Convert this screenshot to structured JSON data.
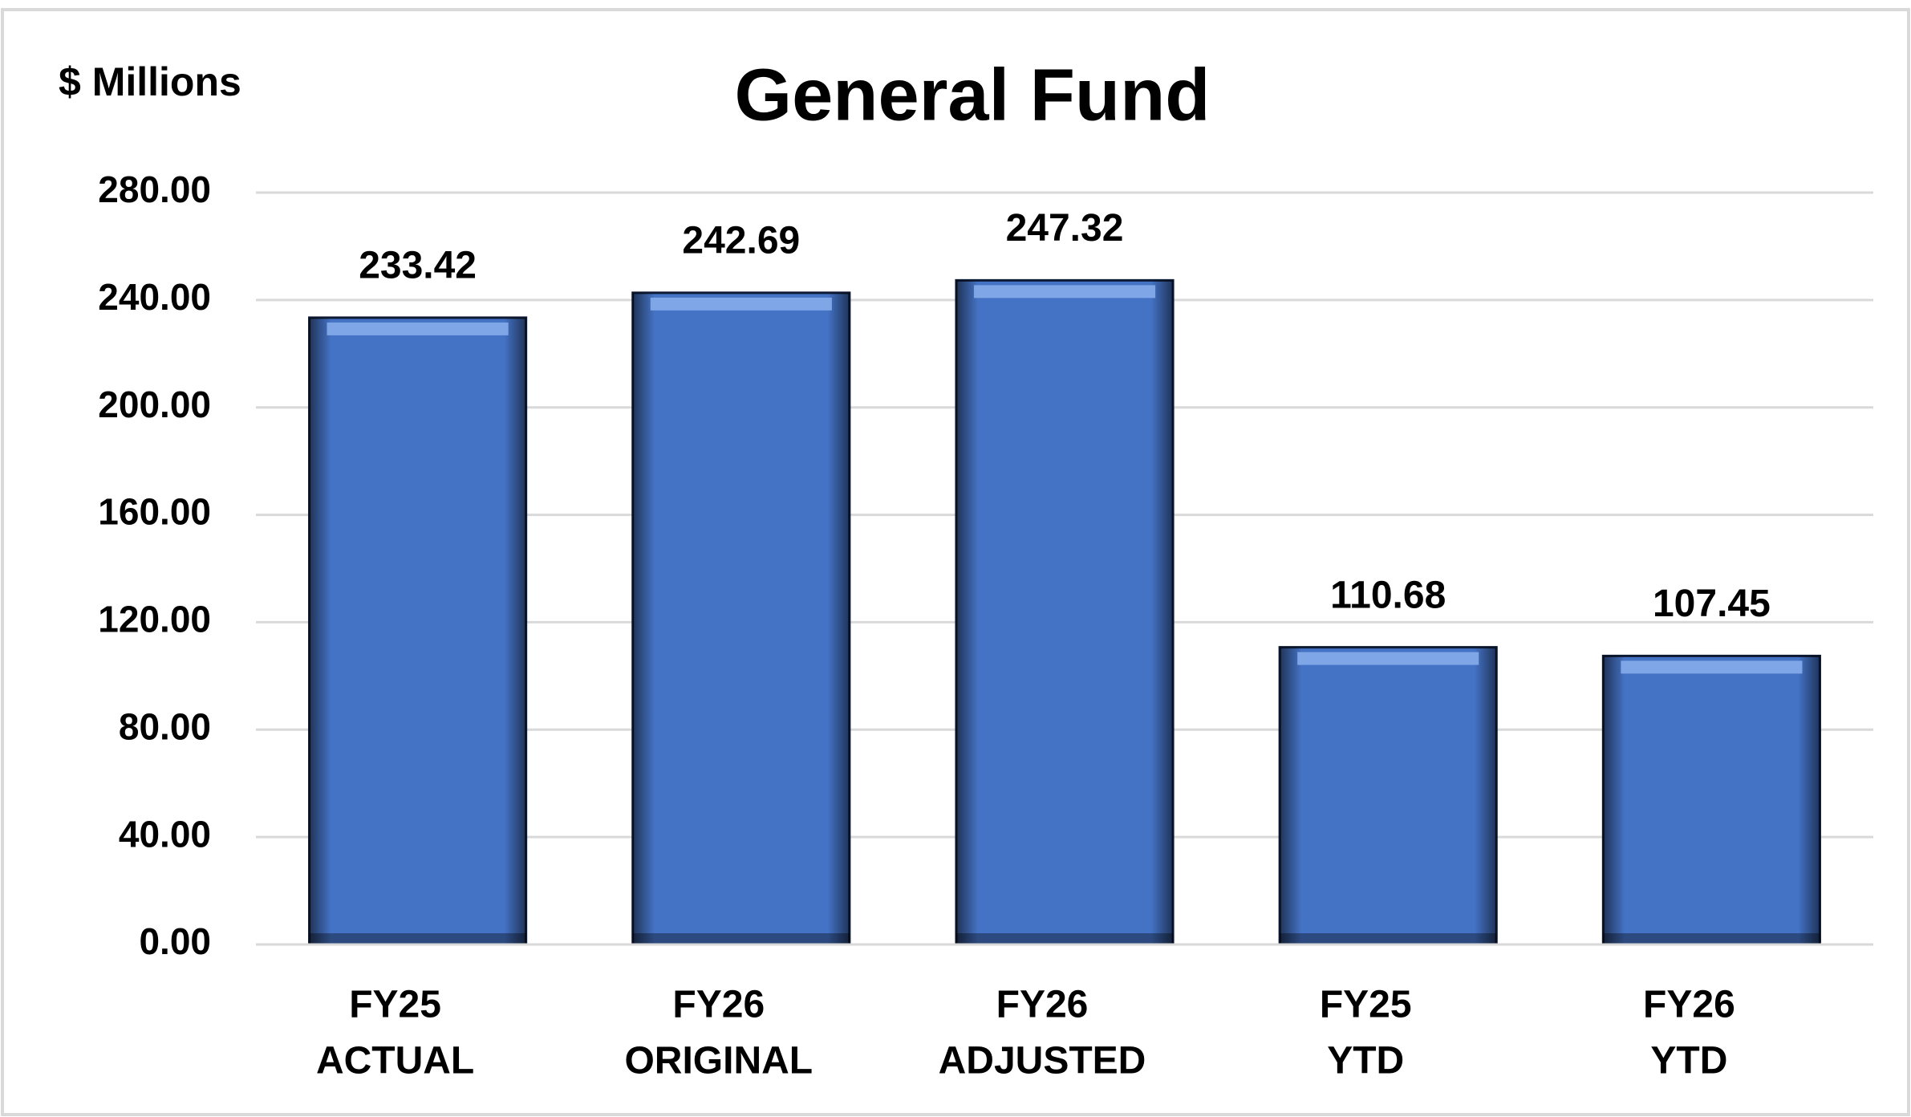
{
  "chart_data": {
    "type": "bar",
    "title": "General Fund",
    "y_label": "$ Millions",
    "categories": [
      [
        "FY25",
        "ACTUAL"
      ],
      [
        "FY26",
        "ORIGINAL"
      ],
      [
        "FY26",
        "ADJUSTED"
      ],
      [
        "FY25",
        "YTD"
      ],
      [
        "FY26",
        "YTD"
      ]
    ],
    "values": [
      233.42,
      242.69,
      247.32,
      110.68,
      107.45
    ],
    "color": "#4472c4",
    "ylim": [
      0,
      280
    ],
    "yticks": [
      {
        "value": 0,
        "label": "0.00"
      },
      {
        "value": 40,
        "label": "40.00"
      },
      {
        "value": 80,
        "label": "80.00"
      },
      {
        "value": 120,
        "label": "120.00"
      },
      {
        "value": 160,
        "label": "160.00"
      },
      {
        "value": 200,
        "label": "200.00"
      },
      {
        "value": 240,
        "label": "240.00"
      },
      {
        "value": 280,
        "label": "280.00"
      }
    ],
    "grid": true
  }
}
